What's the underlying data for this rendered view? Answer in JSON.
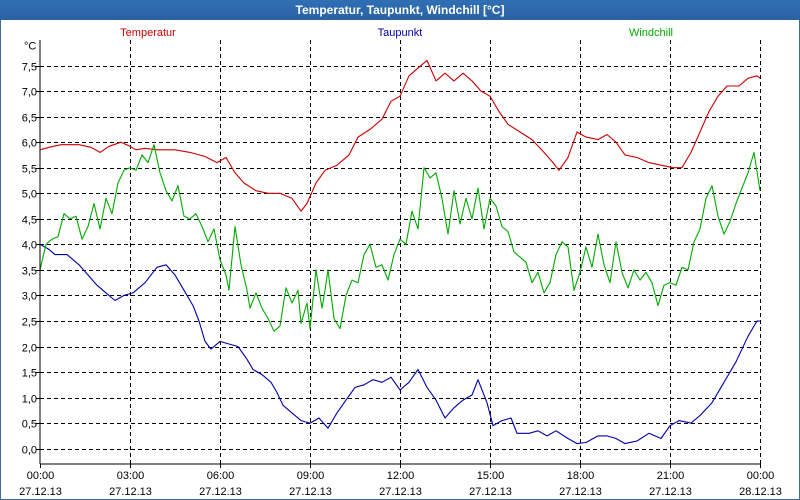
{
  "window": {
    "title": "Temperatur, Taupunkt, Windchill [°C]"
  },
  "chart_data": {
    "type": "line",
    "title": "Temperatur, Taupunkt, Windchill [°C]",
    "ylabel": "°C",
    "ylim": [
      -0.3,
      8.0
    ],
    "xlim": [
      0,
      24
    ],
    "grid": true,
    "yticks": [
      {
        "v": 0.0,
        "label": "0,0"
      },
      {
        "v": 0.5,
        "label": "0,5"
      },
      {
        "v": 1.0,
        "label": "1,0"
      },
      {
        "v": 1.5,
        "label": "1,5"
      },
      {
        "v": 2.0,
        "label": "2,0"
      },
      {
        "v": 2.5,
        "label": "2,5"
      },
      {
        "v": 3.0,
        "label": "3,0"
      },
      {
        "v": 3.5,
        "label": "3,5"
      },
      {
        "v": 4.0,
        "label": "4,0"
      },
      {
        "v": 4.5,
        "label": "4,5"
      },
      {
        "v": 5.0,
        "label": "5,0"
      },
      {
        "v": 5.5,
        "label": "5,5"
      },
      {
        "v": 6.0,
        "label": "6,0"
      },
      {
        "v": 6.5,
        "label": "6,5"
      },
      {
        "v": 7.0,
        "label": "7,0"
      },
      {
        "v": 7.5,
        "label": "7,5"
      }
    ],
    "xticks": [
      {
        "h": 0,
        "time": "00:00",
        "date": "27.12.13"
      },
      {
        "h": 3,
        "time": "03:00",
        "date": "27.12.13"
      },
      {
        "h": 6,
        "time": "06:00",
        "date": "27.12.13"
      },
      {
        "h": 9,
        "time": "09:00",
        "date": "27.12.13"
      },
      {
        "h": 12,
        "time": "12:00",
        "date": "27.12.13"
      },
      {
        "h": 15,
        "time": "15:00",
        "date": "27.12.13"
      },
      {
        "h": 18,
        "time": "18:00",
        "date": "27.12.13"
      },
      {
        "h": 21,
        "time": "21:00",
        "date": "27.12.13"
      },
      {
        "h": 24,
        "time": "00:00",
        "date": "28.12.13"
      }
    ],
    "series": [
      {
        "name": "Temperatur",
        "color": "#cc0000",
        "legend_pos": "left",
        "points": [
          [
            0,
            5.85
          ],
          [
            0.3,
            5.9
          ],
          [
            0.7,
            5.95
          ],
          [
            1.3,
            5.95
          ],
          [
            1.7,
            5.9
          ],
          [
            2.0,
            5.8
          ],
          [
            2.3,
            5.92
          ],
          [
            2.7,
            6.0
          ],
          [
            3.0,
            5.92
          ],
          [
            3.2,
            5.85
          ],
          [
            3.5,
            5.88
          ],
          [
            3.9,
            5.85
          ],
          [
            4.5,
            5.85
          ],
          [
            5.0,
            5.8
          ],
          [
            5.5,
            5.72
          ],
          [
            5.9,
            5.6
          ],
          [
            6.2,
            5.7
          ],
          [
            6.5,
            5.4
          ],
          [
            6.8,
            5.2
          ],
          [
            7.2,
            5.05
          ],
          [
            7.6,
            5.0
          ],
          [
            8.0,
            5.0
          ],
          [
            8.4,
            4.9
          ],
          [
            8.7,
            4.65
          ],
          [
            8.9,
            4.8
          ],
          [
            9.2,
            5.2
          ],
          [
            9.5,
            5.45
          ],
          [
            9.9,
            5.55
          ],
          [
            10.3,
            5.75
          ],
          [
            10.6,
            6.1
          ],
          [
            11.0,
            6.25
          ],
          [
            11.4,
            6.45
          ],
          [
            11.7,
            6.8
          ],
          [
            12.0,
            6.9
          ],
          [
            12.3,
            7.3
          ],
          [
            12.6,
            7.45
          ],
          [
            12.9,
            7.6
          ],
          [
            13.2,
            7.2
          ],
          [
            13.5,
            7.35
          ],
          [
            13.8,
            7.2
          ],
          [
            14.1,
            7.35
          ],
          [
            14.4,
            7.2
          ],
          [
            14.7,
            7.0
          ],
          [
            15.0,
            6.9
          ],
          [
            15.3,
            6.6
          ],
          [
            15.6,
            6.35
          ],
          [
            16.0,
            6.2
          ],
          [
            16.4,
            6.05
          ],
          [
            16.8,
            5.8
          ],
          [
            17.1,
            5.6
          ],
          [
            17.3,
            5.45
          ],
          [
            17.6,
            5.7
          ],
          [
            17.9,
            6.2
          ],
          [
            18.2,
            6.1
          ],
          [
            18.6,
            6.05
          ],
          [
            18.9,
            6.15
          ],
          [
            19.2,
            6.0
          ],
          [
            19.5,
            5.75
          ],
          [
            19.9,
            5.7
          ],
          [
            20.3,
            5.6
          ],
          [
            20.7,
            5.55
          ],
          [
            21.1,
            5.5
          ],
          [
            21.4,
            5.5
          ],
          [
            21.7,
            5.8
          ],
          [
            22.0,
            6.2
          ],
          [
            22.3,
            6.6
          ],
          [
            22.6,
            6.9
          ],
          [
            22.9,
            7.1
          ],
          [
            23.3,
            7.1
          ],
          [
            23.6,
            7.25
          ],
          [
            23.9,
            7.3
          ],
          [
            24,
            7.25
          ]
        ]
      },
      {
        "name": "Taupunkt",
        "color": "#0000aa",
        "legend_pos": "center",
        "points": [
          [
            0,
            4.0
          ],
          [
            0.3,
            3.9
          ],
          [
            0.5,
            3.8
          ],
          [
            0.9,
            3.8
          ],
          [
            1.3,
            3.6
          ],
          [
            1.6,
            3.4
          ],
          [
            1.9,
            3.2
          ],
          [
            2.2,
            3.05
          ],
          [
            2.5,
            2.9
          ],
          [
            2.8,
            3.0
          ],
          [
            3.1,
            3.05
          ],
          [
            3.5,
            3.25
          ],
          [
            3.9,
            3.55
          ],
          [
            4.2,
            3.6
          ],
          [
            4.5,
            3.4
          ],
          [
            4.8,
            3.1
          ],
          [
            5.1,
            2.8
          ],
          [
            5.3,
            2.5
          ],
          [
            5.5,
            2.1
          ],
          [
            5.7,
            1.95
          ],
          [
            6.0,
            2.1
          ],
          [
            6.3,
            2.05
          ],
          [
            6.6,
            2.0
          ],
          [
            6.9,
            1.75
          ],
          [
            7.1,
            1.55
          ],
          [
            7.4,
            1.45
          ],
          [
            7.7,
            1.3
          ],
          [
            7.9,
            1.1
          ],
          [
            8.1,
            0.85
          ],
          [
            8.4,
            0.7
          ],
          [
            8.7,
            0.55
          ],
          [
            9.0,
            0.5
          ],
          [
            9.3,
            0.6
          ],
          [
            9.6,
            0.4
          ],
          [
            9.9,
            0.7
          ],
          [
            10.2,
            0.95
          ],
          [
            10.5,
            1.2
          ],
          [
            10.8,
            1.25
          ],
          [
            11.1,
            1.35
          ],
          [
            11.4,
            1.3
          ],
          [
            11.7,
            1.4
          ],
          [
            12.0,
            1.15
          ],
          [
            12.3,
            1.3
          ],
          [
            12.6,
            1.55
          ],
          [
            12.9,
            1.2
          ],
          [
            13.2,
            0.95
          ],
          [
            13.5,
            0.6
          ],
          [
            13.8,
            0.8
          ],
          [
            14.1,
            0.95
          ],
          [
            14.4,
            1.05
          ],
          [
            14.6,
            1.35
          ],
          [
            14.9,
            0.9
          ],
          [
            15.1,
            0.45
          ],
          [
            15.4,
            0.55
          ],
          [
            15.7,
            0.6
          ],
          [
            15.9,
            0.3
          ],
          [
            16.3,
            0.3
          ],
          [
            16.6,
            0.35
          ],
          [
            16.9,
            0.25
          ],
          [
            17.2,
            0.35
          ],
          [
            17.6,
            0.2
          ],
          [
            17.9,
            0.1
          ],
          [
            18.2,
            0.12
          ],
          [
            18.6,
            0.25
          ],
          [
            18.9,
            0.25
          ],
          [
            19.2,
            0.2
          ],
          [
            19.5,
            0.1
          ],
          [
            19.9,
            0.15
          ],
          [
            20.3,
            0.3
          ],
          [
            20.7,
            0.2
          ],
          [
            21.0,
            0.45
          ],
          [
            21.3,
            0.55
          ],
          [
            21.7,
            0.5
          ],
          [
            22.0,
            0.65
          ],
          [
            22.4,
            0.9
          ],
          [
            22.8,
            1.3
          ],
          [
            23.2,
            1.7
          ],
          [
            23.6,
            2.2
          ],
          [
            23.9,
            2.5
          ],
          [
            24,
            2.5
          ]
        ]
      },
      {
        "name": "Windchill",
        "color": "#00aa00",
        "legend_pos": "right",
        "points": [
          [
            0,
            3.5
          ],
          [
            0.1,
            3.75
          ],
          [
            0.2,
            4.0
          ],
          [
            0.4,
            4.1
          ],
          [
            0.6,
            4.15
          ],
          [
            0.8,
            4.6
          ],
          [
            1.0,
            4.5
          ],
          [
            1.2,
            4.55
          ],
          [
            1.4,
            4.1
          ],
          [
            1.6,
            4.35
          ],
          [
            1.8,
            4.8
          ],
          [
            2.0,
            4.3
          ],
          [
            2.2,
            4.9
          ],
          [
            2.4,
            4.6
          ],
          [
            2.6,
            5.2
          ],
          [
            2.8,
            5.45
          ],
          [
            3.0,
            5.5
          ],
          [
            3.2,
            5.45
          ],
          [
            3.4,
            5.75
          ],
          [
            3.6,
            5.6
          ],
          [
            3.8,
            5.95
          ],
          [
            4.0,
            5.4
          ],
          [
            4.2,
            5.05
          ],
          [
            4.4,
            4.85
          ],
          [
            4.6,
            5.15
          ],
          [
            4.8,
            4.55
          ],
          [
            5.0,
            4.5
          ],
          [
            5.2,
            4.6
          ],
          [
            5.4,
            4.35
          ],
          [
            5.6,
            4.05
          ],
          [
            5.8,
            4.3
          ],
          [
            6.0,
            3.7
          ],
          [
            6.2,
            3.4
          ],
          [
            6.3,
            3.1
          ],
          [
            6.5,
            4.35
          ],
          [
            6.7,
            3.6
          ],
          [
            6.9,
            3.1
          ],
          [
            7.0,
            2.75
          ],
          [
            7.2,
            3.05
          ],
          [
            7.4,
            2.75
          ],
          [
            7.6,
            2.55
          ],
          [
            7.8,
            2.3
          ],
          [
            8.0,
            2.4
          ],
          [
            8.2,
            3.15
          ],
          [
            8.4,
            2.85
          ],
          [
            8.6,
            3.1
          ],
          [
            8.7,
            2.45
          ],
          [
            8.9,
            2.85
          ],
          [
            9.0,
            2.35
          ],
          [
            9.2,
            3.5
          ],
          [
            9.4,
            2.75
          ],
          [
            9.5,
            3.1
          ],
          [
            9.6,
            3.5
          ],
          [
            9.8,
            2.55
          ],
          [
            10.0,
            2.35
          ],
          [
            10.2,
            3.0
          ],
          [
            10.4,
            3.3
          ],
          [
            10.6,
            3.25
          ],
          [
            10.8,
            3.8
          ],
          [
            11.0,
            4.0
          ],
          [
            11.2,
            3.55
          ],
          [
            11.4,
            3.6
          ],
          [
            11.6,
            3.3
          ],
          [
            11.8,
            3.8
          ],
          [
            12.0,
            4.1
          ],
          [
            12.2,
            4.0
          ],
          [
            12.4,
            4.65
          ],
          [
            12.6,
            4.3
          ],
          [
            12.8,
            5.5
          ],
          [
            13.0,
            5.3
          ],
          [
            13.2,
            5.4
          ],
          [
            13.4,
            4.9
          ],
          [
            13.6,
            4.2
          ],
          [
            13.8,
            5.05
          ],
          [
            14.0,
            4.4
          ],
          [
            14.2,
            4.9
          ],
          [
            14.4,
            4.5
          ],
          [
            14.6,
            5.1
          ],
          [
            14.8,
            4.3
          ],
          [
            15.0,
            4.9
          ],
          [
            15.2,
            4.75
          ],
          [
            15.4,
            4.35
          ],
          [
            15.6,
            4.25
          ],
          [
            15.8,
            3.85
          ],
          [
            16.0,
            3.75
          ],
          [
            16.2,
            3.65
          ],
          [
            16.4,
            3.25
          ],
          [
            16.6,
            3.45
          ],
          [
            16.8,
            3.05
          ],
          [
            17.0,
            3.25
          ],
          [
            17.2,
            3.8
          ],
          [
            17.4,
            4.05
          ],
          [
            17.6,
            3.95
          ],
          [
            17.8,
            3.1
          ],
          [
            18.0,
            3.45
          ],
          [
            18.2,
            3.95
          ],
          [
            18.4,
            3.55
          ],
          [
            18.6,
            4.2
          ],
          [
            18.8,
            3.6
          ],
          [
            19.0,
            3.25
          ],
          [
            19.2,
            4.05
          ],
          [
            19.4,
            3.45
          ],
          [
            19.6,
            3.15
          ],
          [
            19.8,
            3.5
          ],
          [
            20.0,
            3.3
          ],
          [
            20.2,
            3.45
          ],
          [
            20.4,
            3.25
          ],
          [
            20.6,
            2.8
          ],
          [
            20.8,
            3.2
          ],
          [
            21.0,
            3.25
          ],
          [
            21.2,
            3.2
          ],
          [
            21.4,
            3.55
          ],
          [
            21.6,
            3.5
          ],
          [
            21.8,
            4.05
          ],
          [
            22.0,
            4.3
          ],
          [
            22.2,
            4.9
          ],
          [
            22.4,
            5.15
          ],
          [
            22.6,
            4.55
          ],
          [
            22.8,
            4.2
          ],
          [
            23.0,
            4.45
          ],
          [
            23.2,
            4.8
          ],
          [
            23.4,
            5.1
          ],
          [
            23.6,
            5.4
          ],
          [
            23.8,
            5.8
          ],
          [
            24,
            5.05
          ]
        ]
      }
    ]
  }
}
